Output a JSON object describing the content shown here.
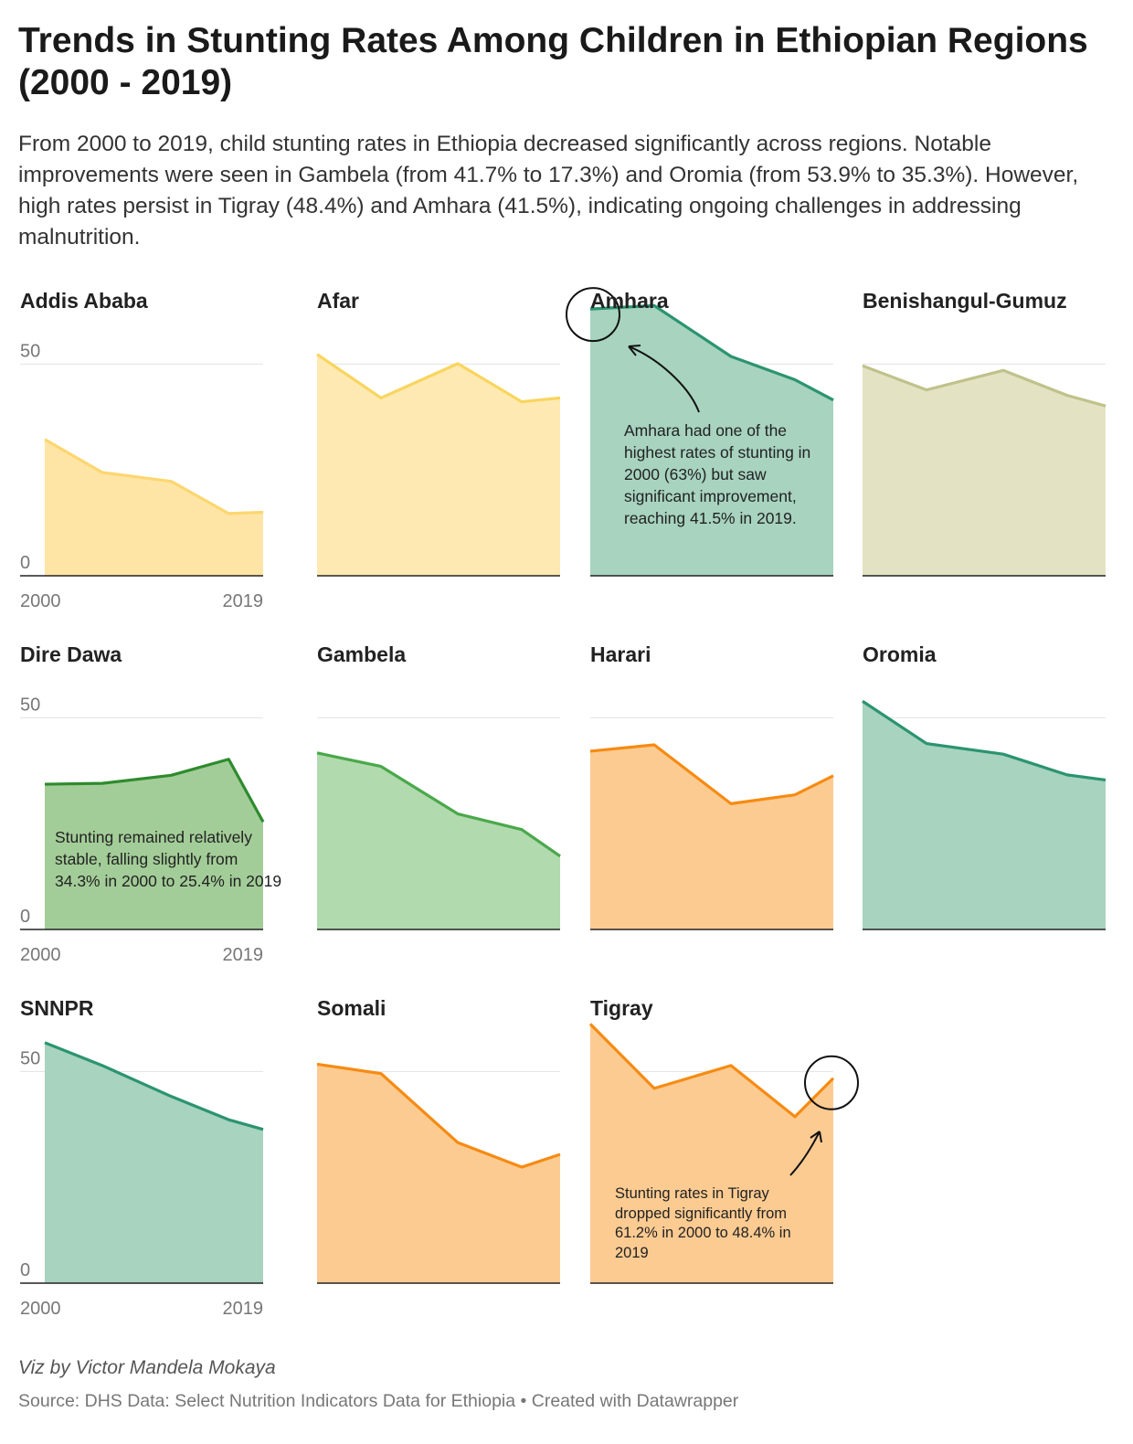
{
  "title": "Trends in Stunting Rates Among Children in Ethiopian Regions (2000 - 2019)",
  "description": "From 2000 to 2019, child stunting rates in Ethiopia decreased significantly across regions. Notable improvements were seen in Gambela (from 41.7% to 17.3%) and Oromia (from 53.9% to 35.3%). However, high rates persist in Tigray (48.4%) and Amhara (41.5%), indicating ongoing challenges in addressing malnutrition.",
  "credit": "Viz by Victor Mandela Mokaya",
  "source": "Source: DHS Data: Select Nutrition Indicators Data for Ethiopia • Created with Datawrapper",
  "chart_data": {
    "type": "area",
    "x": [
      2000,
      2005,
      2011,
      2016,
      2019
    ],
    "ylim": [
      0,
      60
    ],
    "yticks": [
      0,
      50
    ],
    "x_tick_labels": [
      "2000",
      "2019"
    ],
    "series": [
      {
        "name": "Addis Ababa",
        "values": [
          32.2,
          24.4,
          22.3,
          14.7,
          15.0
        ],
        "color": "#ffe5a5",
        "line": "#fcd670"
      },
      {
        "name": "Afar",
        "values": [
          52.3,
          42.0,
          50.1,
          41.1,
          42.0
        ],
        "color": "#fee9b3",
        "line": "#f9d55e"
      },
      {
        "name": "Amhara",
        "values": [
          63.0,
          63.8,
          51.8,
          46.3,
          41.5
        ],
        "color": "#a7d3bf",
        "line": "#2b9470"
      },
      {
        "name": "Benishangul-Gumuz",
        "values": [
          49.6,
          43.9,
          48.5,
          42.6,
          40.1
        ],
        "color": "#e3e3c4",
        "line": "#c0c28a"
      },
      {
        "name": "Dire Dawa",
        "values": [
          34.3,
          34.5,
          36.4,
          40.2,
          25.4
        ],
        "color": "#a3cd98",
        "line": "#2e8b2e"
      },
      {
        "name": "Gambela",
        "values": [
          41.7,
          38.5,
          27.3,
          23.6,
          17.3
        ],
        "color": "#b1daae",
        "line": "#4aa84a"
      },
      {
        "name": "Harari",
        "values": [
          42.1,
          43.6,
          29.7,
          31.8,
          36.3
        ],
        "color": "#fccb92",
        "line": "#f68b12"
      },
      {
        "name": "Oromia",
        "values": [
          53.9,
          43.9,
          41.4,
          36.5,
          35.3
        ],
        "color": "#a7d3bf",
        "line": "#2b9470"
      },
      {
        "name": "SNNPR",
        "values": [
          56.8,
          51.4,
          44.1,
          38.6,
          36.3
        ],
        "color": "#a7d3bf",
        "line": "#2b9470"
      },
      {
        "name": "Somali",
        "values": [
          51.7,
          49.5,
          33.2,
          27.4,
          30.4
        ],
        "color": "#fccb92",
        "line": "#f68b12"
      },
      {
        "name": "Tigray",
        "values": [
          61.2,
          46.0,
          51.4,
          39.3,
          48.4
        ],
        "color": "#fccb92",
        "line": "#f68b12"
      }
    ],
    "annotations": {
      "Amhara": "Amhara had one of the highest rates of stunting in 2000 (63%) but saw significant improvement, reaching 41.5% in 2019.",
      "Dire Dawa": "Stunting remained relatively stable, falling slightly from 34.3% in 2000 to 25.4% in 2019",
      "Tigray": "Stunting rates in Tigray dropped significantly from 61.2% in 2000 to 48.4% in 2019"
    }
  }
}
